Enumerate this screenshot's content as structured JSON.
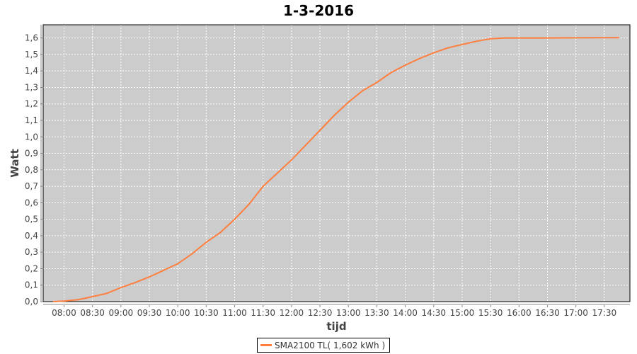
{
  "chart_data": {
    "type": "line",
    "title": "1-3-2016",
    "xlabel": "tijd",
    "ylabel": "Watt",
    "xlim": [
      "07:38",
      "17:57"
    ],
    "ylim": [
      0,
      1.68
    ],
    "xticks": [
      "08:00",
      "08:30",
      "09:00",
      "09:30",
      "10:00",
      "10:30",
      "11:00",
      "11:30",
      "12:00",
      "12:30",
      "13:00",
      "13:30",
      "14:00",
      "14:30",
      "15:00",
      "15:30",
      "16:00",
      "16:30",
      "17:00",
      "17:30"
    ],
    "yticks": [
      "0,0",
      "0,1",
      "0,2",
      "0,3",
      "0,4",
      "0,5",
      "0,6",
      "0,7",
      "0,8",
      "0,9",
      "1,0",
      "1,1",
      "1,2",
      "1,3",
      "1,4",
      "1,5",
      "1,6"
    ],
    "grid": true,
    "legend_position": "bottom",
    "series": [
      {
        "name": "SMA2100 TL( 1,602 kWh )",
        "color": "#ff7f3f",
        "x": [
          "07:49",
          "08:00",
          "08:15",
          "08:30",
          "08:45",
          "09:00",
          "09:15",
          "09:30",
          "09:45",
          "10:00",
          "10:15",
          "10:30",
          "10:45",
          "11:00",
          "11:15",
          "11:30",
          "11:45",
          "12:00",
          "12:15",
          "12:30",
          "12:45",
          "13:00",
          "13:15",
          "13:30",
          "13:45",
          "14:00",
          "14:15",
          "14:30",
          "14:45",
          "15:00",
          "15:15",
          "15:30",
          "15:45",
          "16:00",
          "16:30",
          "17:00",
          "17:30",
          "17:45"
        ],
        "y": [
          0,
          0.003,
          0.012,
          0.03,
          0.05,
          0.085,
          0.115,
          0.15,
          0.19,
          0.23,
          0.29,
          0.36,
          0.42,
          0.5,
          0.59,
          0.7,
          0.78,
          0.86,
          0.95,
          1.04,
          1.13,
          1.21,
          1.28,
          1.33,
          1.39,
          1.435,
          1.475,
          1.51,
          1.54,
          1.56,
          1.58,
          1.595,
          1.6,
          1.6,
          1.6,
          1.601,
          1.602,
          1.602
        ]
      }
    ]
  }
}
